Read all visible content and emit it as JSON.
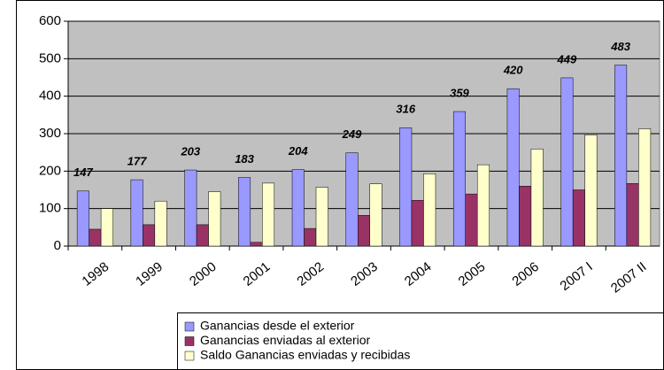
{
  "chart_data": {
    "type": "bar",
    "categories": [
      "1998",
      "1999",
      "2000",
      "2001",
      "2002",
      "2003",
      "2004",
      "2005",
      "2006",
      "2007 I",
      "2007 II"
    ],
    "series": [
      {
        "name": "Ganancias desde el exterior",
        "color": "#9999ff",
        "values": [
          147,
          177,
          203,
          183,
          204,
          249,
          316,
          359,
          420,
          449,
          483
        ]
      },
      {
        "name": "Ganancias enviadas al exterior",
        "color": "#993366",
        "values": [
          45,
          57,
          57,
          10,
          47,
          82,
          122,
          139,
          160,
          150,
          167
        ]
      },
      {
        "name": "Saldo Ganancias enviadas y recibidas",
        "color": "#ffffcc",
        "values": [
          100,
          120,
          145,
          168,
          157,
          166,
          193,
          217,
          259,
          297,
          313
        ]
      }
    ],
    "ylim": [
      0,
      600
    ],
    "yticks": [
      0,
      100,
      200,
      300,
      400,
      500,
      600
    ],
    "grid": true,
    "legend": "bottom"
  }
}
